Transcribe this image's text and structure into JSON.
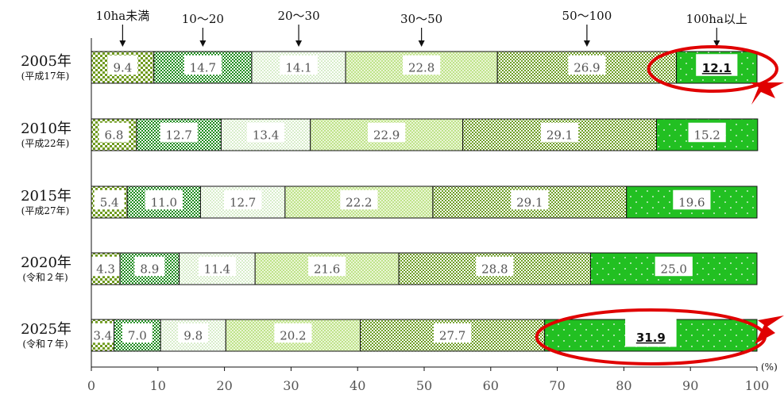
{
  "chart_data": {
    "type": "bar",
    "orientation": "horizontal",
    "stacked": true,
    "unit": "(%)",
    "xlim": [
      0,
      100
    ],
    "xticks": [
      "0",
      "10",
      "20",
      "30",
      "40",
      "50",
      "60",
      "70",
      "80",
      "90",
      "100"
    ],
    "categories": [
      {
        "year": "2005年",
        "era": "(平成17年)"
      },
      {
        "year": "2010年",
        "era": "(平成22年)"
      },
      {
        "year": "2015年",
        "era": "(平成27年)"
      },
      {
        "year": "2020年",
        "era": "(令和２年)"
      },
      {
        "year": "2025年",
        "era": "(令和７年)"
      }
    ],
    "series": [
      {
        "name": "10ha未満",
        "values": [
          9.4,
          6.8,
          5.4,
          4.3,
          3.4
        ],
        "labels": [
          "9.4",
          "6.8",
          "5.4",
          "4.3",
          "3.4"
        ],
        "color": "#6f9a1e"
      },
      {
        "name": "10～20",
        "values": [
          14.7,
          12.7,
          11.0,
          8.9,
          7.0
        ],
        "labels": [
          "14.7",
          "12.7",
          "11.0",
          "8.9",
          "7.0"
        ],
        "color": "#1f8f1f"
      },
      {
        "name": "20～30",
        "values": [
          14.1,
          13.4,
          12.7,
          11.4,
          9.8
        ],
        "labels": [
          "14.1",
          "13.4",
          "12.7",
          "11.4",
          "9.8"
        ],
        "color": "#cfe9b0"
      },
      {
        "name": "30～50",
        "values": [
          22.8,
          22.9,
          22.2,
          21.6,
          20.2
        ],
        "labels": [
          "22.8",
          "22.9",
          "22.2",
          "21.6",
          "20.2"
        ],
        "color": "#b8e07a"
      },
      {
        "name": "50～100",
        "values": [
          26.9,
          29.1,
          29.1,
          28.8,
          27.7
        ],
        "labels": [
          "26.9",
          "29.1",
          "29.1",
          "28.8",
          "27.7"
        ],
        "color": "#78a82a"
      },
      {
        "name": "100ha以上",
        "values": [
          12.1,
          15.2,
          19.6,
          25.0,
          31.9
        ],
        "labels": [
          "12.1",
          "15.2",
          "19.6",
          "25.0",
          "31.9"
        ],
        "color": "#22c022"
      }
    ],
    "highlights": [
      {
        "category": 0,
        "series": 5
      },
      {
        "category": 4,
        "series": 5
      }
    ],
    "highlight_color": "#e00000",
    "grid": false,
    "legend": "category labels above bars with arrows"
  }
}
